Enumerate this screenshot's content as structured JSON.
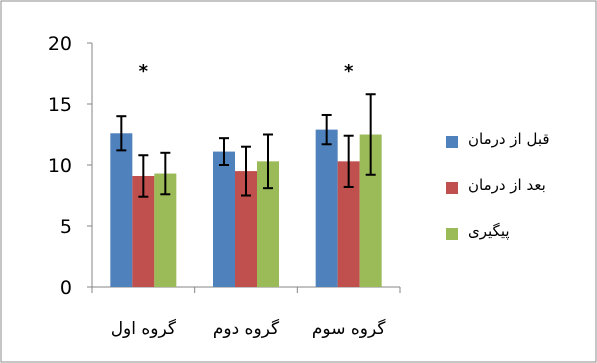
{
  "chart_data": {
    "type": "bar",
    "categories": [
      "گروه اول",
      "گروه دوم",
      "گروه سوم"
    ],
    "series": [
      {
        "name": "قبل از درمان",
        "color": "#4F81BD",
        "values": [
          12.6,
          11.1,
          12.9
        ],
        "error": [
          1.4,
          1.1,
          1.2
        ]
      },
      {
        "name": "بعد از درمان",
        "color": "#C0504D",
        "values": [
          9.1,
          9.5,
          10.3
        ],
        "error": [
          1.7,
          2.0,
          2.1
        ]
      },
      {
        "name": "پیگیری",
        "color": "#9BBB59",
        "values": [
          9.3,
          10.3,
          12.5
        ],
        "error": [
          1.7,
          2.2,
          3.3
        ]
      }
    ],
    "significance_markers": [
      "*",
      "",
      "*"
    ],
    "ylim": [
      0,
      20
    ],
    "yticks": [
      0,
      5,
      10,
      15,
      20
    ],
    "grid": false,
    "legend_position": "right",
    "title": "",
    "xlabel": "",
    "ylabel": ""
  }
}
